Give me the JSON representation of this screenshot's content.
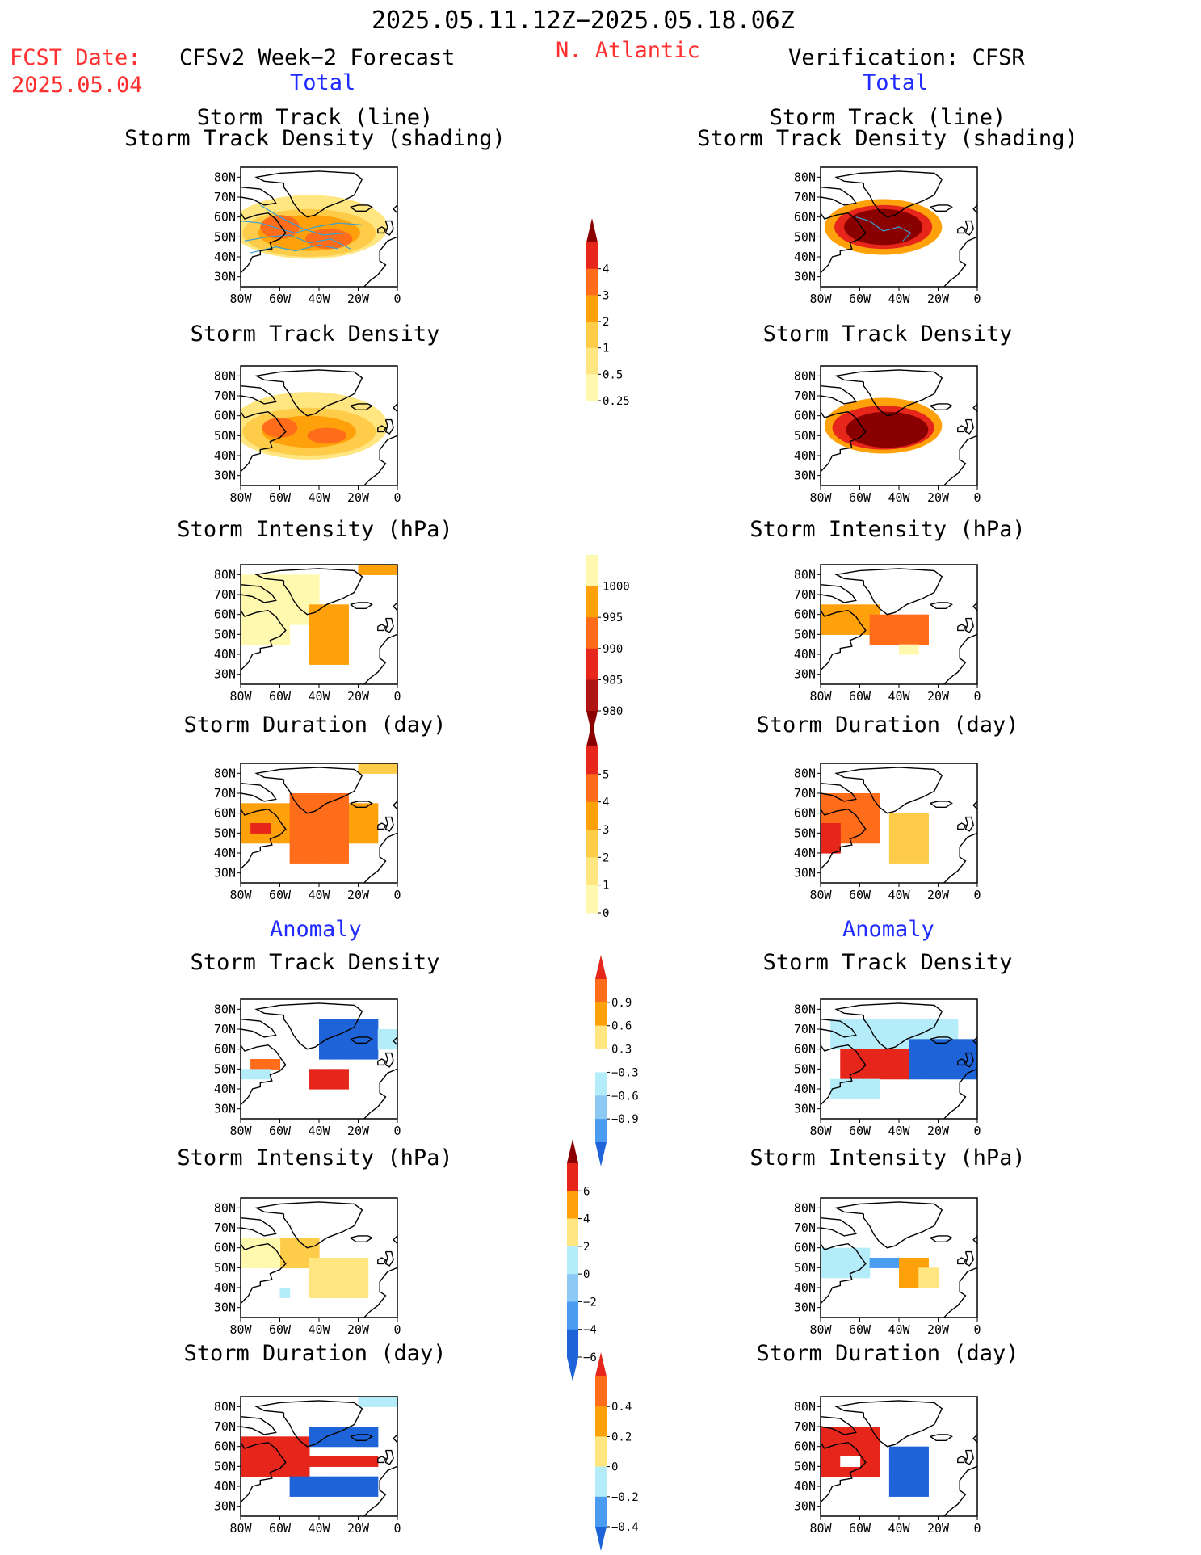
{
  "header": {
    "date_range": "2025.05.11.12Z−2025.05.18.06Z",
    "fcst_label": "FCST Date:",
    "fcst_date": "2025.05.04",
    "region": "N. Atlantic",
    "left_title": "CFSv2 Week−2 Forecast",
    "right_title": "Verification: CFSR",
    "left_total": "Total",
    "right_total": "Total",
    "left_anomaly": "Anomaly",
    "right_anomaly": "Anomaly"
  },
  "panels": {
    "p1_line1": "Storm Track (line)",
    "p1_line2": "Storm Track Density (shading)",
    "p2": "Storm Track Density",
    "p3": "Storm Intensity (hPa)",
    "p4": "Storm Duration (day)",
    "p5": "Storm Track Density",
    "p6": "Storm Intensity (hPa)",
    "p7": "Storm Duration (day)"
  },
  "axes": {
    "x_ticks": [
      "80W",
      "60W",
      "40W",
      "20W",
      "0"
    ],
    "y_ticks": [
      "80N",
      "70N",
      "60N",
      "50N",
      "40N",
      "30N"
    ]
  },
  "colorbars": {
    "density": [
      "4",
      "3",
      "2",
      "1",
      "0.5",
      "0.25"
    ],
    "intensity": [
      "1000",
      "995",
      "990",
      "985",
      "980"
    ],
    "duration": [
      "5",
      "4",
      "3",
      "2",
      "1",
      "0"
    ],
    "density_anom": [
      "0.9",
      "0.6",
      "0.3",
      "−0.3",
      "−0.6",
      "−0.9"
    ],
    "intensity_anom": [
      "6",
      "4",
      "2",
      "0",
      "−2",
      "−4",
      "−6"
    ],
    "duration_anom": [
      "0.4",
      "0.2",
      "0",
      "−0.2",
      "−0.4"
    ]
  },
  "chart_data": {
    "type": "heatmap",
    "x_range": [
      -80,
      0
    ],
    "y_range": [
      25,
      85
    ],
    "colors": {
      "pale_yellow": "#fff9b0",
      "light_yellow": "#ffe680",
      "yellow_orange": "#ffcc4a",
      "orange": "#ffa10a",
      "dark_orange": "#ff6c1a",
      "red": "#e6261a",
      "dark_red": "#b01414",
      "darkest_red": "#8a0000",
      "light_blue": "#b5ecfa",
      "mid_blue": "#8ccaf5",
      "blue": "#4a9cf0",
      "dark_blue": "#1e64d8",
      "track_line": "#3aa0d0"
    }
  }
}
